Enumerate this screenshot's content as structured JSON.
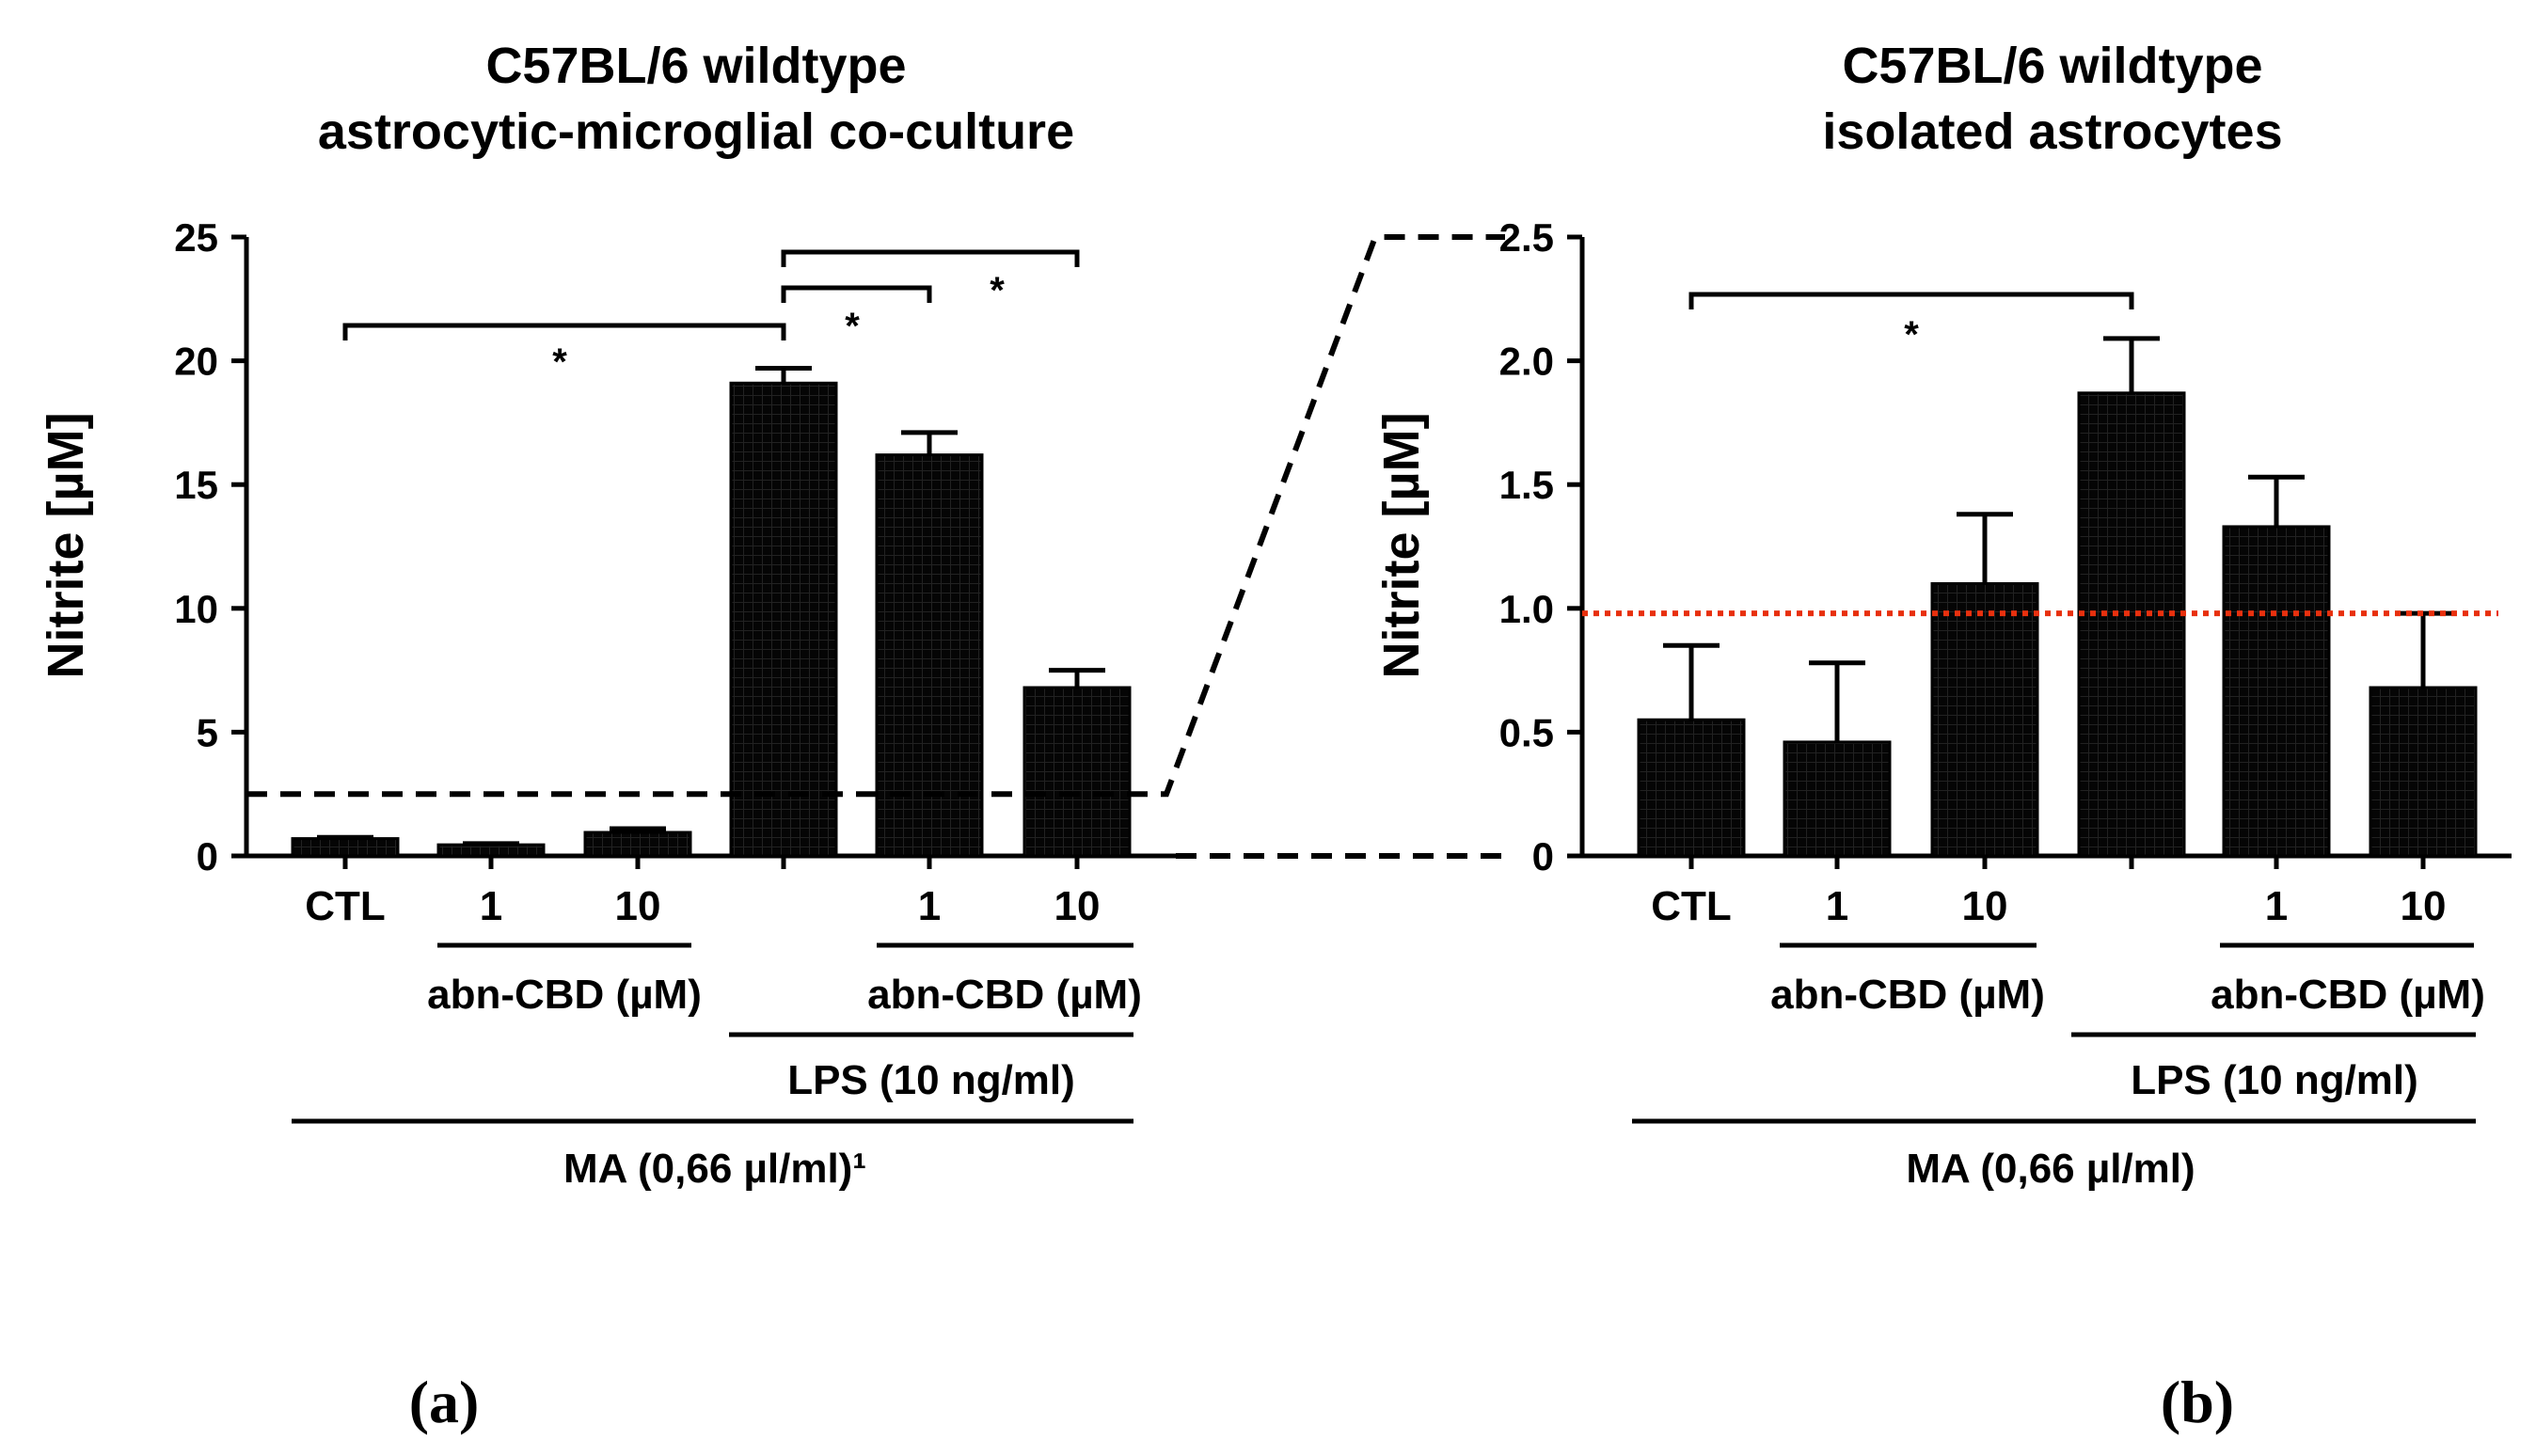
{
  "chart_data": [
    {
      "type": "bar",
      "panel_label": "(a)",
      "title": [
        "C57BL/6 wildtype",
        "astrocytic-microglial co-culture"
      ],
      "ylabel": "Nitrite [µM]",
      "ylim": [
        0,
        25
      ],
      "yticks": [
        "0",
        "5",
        "10",
        "15",
        "20",
        "25"
      ],
      "categories": [
        "CTL",
        "1",
        "10",
        "",
        "1",
        "10"
      ],
      "values": [
        0.7,
        0.45,
        0.95,
        19.1,
        16.2,
        6.8
      ],
      "errors": [
        0.05,
        0.05,
        0.15,
        0.6,
        0.9,
        0.7
      ],
      "group_labels": {
        "abn_cbd_1": "abn-CBD (µM)",
        "abn_cbd_2": "abn-CBD (µM)",
        "lps": "LPS (10 ng/ml)",
        "ma": "MA (0,66 µl/ml)¹"
      },
      "significance": [
        {
          "from": 0,
          "to": 3,
          "label": "*"
        },
        {
          "from": 3,
          "to": 4,
          "label": "*"
        },
        {
          "from": 3,
          "to": 5,
          "label": "*"
        }
      ],
      "zoom_threshold": 2.5
    },
    {
      "type": "bar",
      "panel_label": "(b)",
      "title": [
        "C57BL/6 wildtype",
        "isolated astrocytes"
      ],
      "ylabel": "Nitrite [µM]",
      "ylim": [
        0,
        2.5
      ],
      "yticks": [
        "0",
        "0.5",
        "1.0",
        "1.5",
        "2.0",
        "2.5"
      ],
      "categories": [
        "CTL",
        "1",
        "10",
        "",
        "1",
        "10"
      ],
      "values": [
        0.55,
        0.46,
        1.1,
        1.87,
        1.33,
        0.68
      ],
      "errors": [
        0.3,
        0.32,
        0.28,
        0.22,
        0.2,
        0.3
      ],
      "reference_line": 0.98,
      "reference_color": "#e8300e",
      "group_labels": {
        "abn_cbd_1": "abn-CBD (µM)",
        "abn_cbd_2": "abn-CBD (µM)",
        "lps": "LPS (10 ng/ml)",
        "ma": "MA (0,66 µl/ml)"
      },
      "significance": [
        {
          "from": 0,
          "to": 3,
          "label": "*"
        }
      ]
    }
  ]
}
